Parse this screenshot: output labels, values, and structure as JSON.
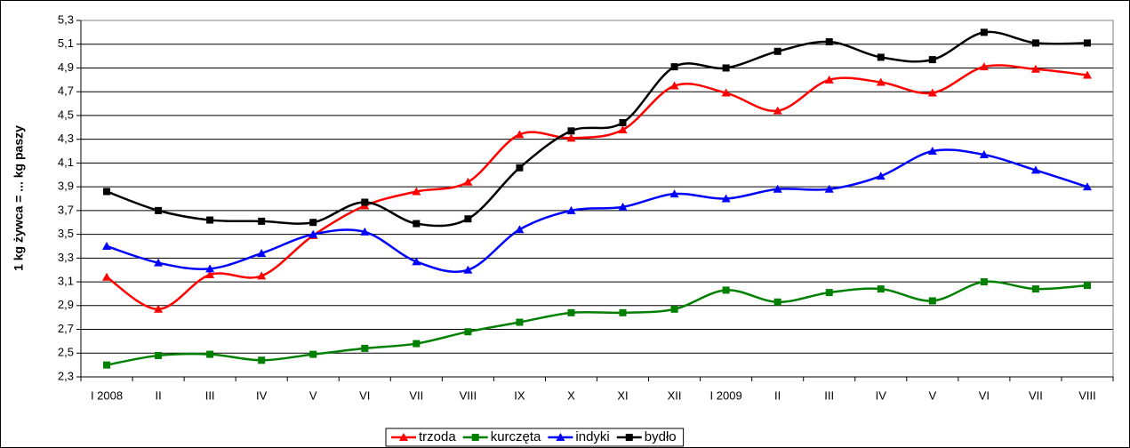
{
  "chart_data": {
    "type": "line",
    "y_label": "1 kg żywca = ... kg paszy",
    "categories": [
      "I 2008",
      "II",
      "III",
      "IV",
      "V",
      "VI",
      "VII",
      "VIII",
      "IX",
      "X",
      "XI",
      "XII",
      "I 2009",
      "II",
      "III",
      "IV",
      "V",
      "VI",
      "VII",
      "VIII"
    ],
    "series": [
      {
        "name": "trzoda",
        "color": "#ff0000",
        "marker": "triangle",
        "values": [
          3.14,
          2.87,
          3.16,
          3.15,
          3.49,
          3.74,
          3.86,
          3.94,
          4.34,
          4.31,
          4.38,
          4.75,
          4.69,
          4.54,
          4.8,
          4.78,
          4.69,
          4.91,
          4.89,
          4.84
        ]
      },
      {
        "name": "kurczęta",
        "color": "#008000",
        "marker": "square",
        "values": [
          2.4,
          2.48,
          2.49,
          2.44,
          2.49,
          2.54,
          2.58,
          2.68,
          2.76,
          2.84,
          2.84,
          2.87,
          3.03,
          2.93,
          3.01,
          3.04,
          2.94,
          3.1,
          3.04,
          3.07
        ]
      },
      {
        "name": "indyki",
        "color": "#0000ff",
        "marker": "triangle",
        "values": [
          3.4,
          3.26,
          3.21,
          3.34,
          3.5,
          3.52,
          3.27,
          3.2,
          3.54,
          3.7,
          3.73,
          3.84,
          3.8,
          3.88,
          3.88,
          3.99,
          4.2,
          4.17,
          4.04,
          3.9
        ]
      },
      {
        "name": "bydło",
        "color": "#000000",
        "marker": "square",
        "values": [
          3.86,
          3.7,
          3.62,
          3.61,
          3.6,
          3.77,
          3.59,
          3.63,
          4.06,
          4.37,
          4.44,
          4.91,
          4.9,
          5.04,
          5.12,
          4.99,
          4.97,
          5.2,
          5.11,
          5.11
        ]
      }
    ],
    "ylim": [
      2.3,
      5.3
    ],
    "yticks": [
      {
        "value": 2.3,
        "label": "2,3"
      },
      {
        "value": 2.5,
        "label": "2,5"
      },
      {
        "value": 2.7,
        "label": "2,7"
      },
      {
        "value": 2.9,
        "label": "2,9"
      },
      {
        "value": 3.1,
        "label": "3,1"
      },
      {
        "value": 3.3,
        "label": "3,3"
      },
      {
        "value": 3.5,
        "label": "3,5"
      },
      {
        "value": 3.7,
        "label": "3,7"
      },
      {
        "value": 3.9,
        "label": "3,9"
      },
      {
        "value": 4.1,
        "label": "4,1"
      },
      {
        "value": 4.3,
        "label": "4,3"
      },
      {
        "value": 4.5,
        "label": "4,5"
      },
      {
        "value": 4.7,
        "label": "4,7"
      },
      {
        "value": 4.9,
        "label": "4,9"
      },
      {
        "value": 5.1,
        "label": "5,1"
      },
      {
        "value": 5.3,
        "label": "5,3"
      }
    ],
    "grid": true,
    "legend": "bottom"
  }
}
